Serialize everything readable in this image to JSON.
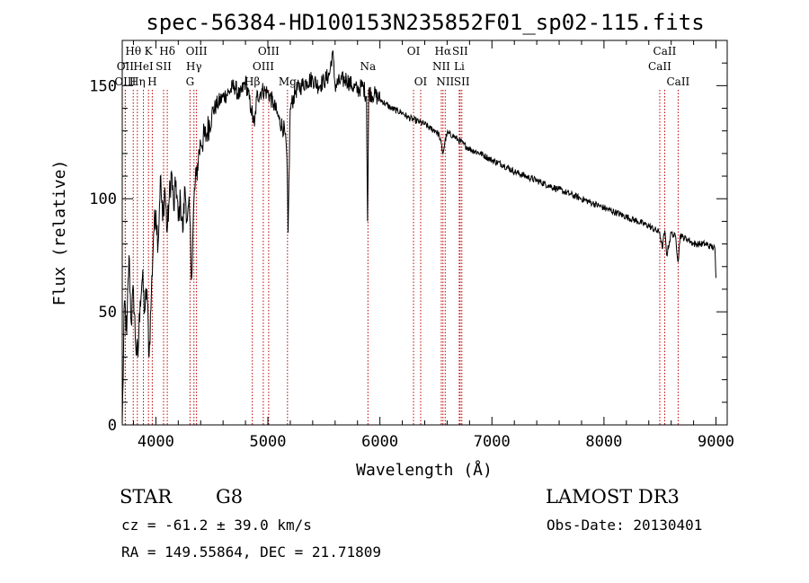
{
  "chart_data": {
    "type": "line",
    "title": "spec-56384-HD100153N235852F01_sp02-115.fits",
    "xlabel": "Wavelength (Å)",
    "ylabel": "Flux (relative)",
    "xlim": [
      3700,
      9100
    ],
    "ylim": [
      0,
      170
    ],
    "xticks": [
      4000,
      5000,
      6000,
      7000,
      8000,
      9000
    ],
    "yticks": [
      0,
      50,
      100,
      150
    ],
    "series": [
      {
        "name": "spectrum",
        "x": [
          3700,
          3720,
          3740,
          3760,
          3780,
          3800,
          3820,
          3840,
          3860,
          3880,
          3900,
          3920,
          3940,
          3960,
          3980,
          4000,
          4020,
          4040,
          4060,
          4080,
          4100,
          4120,
          4140,
          4160,
          4180,
          4200,
          4220,
          4240,
          4260,
          4280,
          4300,
          4320,
          4340,
          4360,
          4380,
          4400,
          4450,
          4500,
          4550,
          4600,
          4650,
          4700,
          4750,
          4800,
          4850,
          4880,
          4900,
          4950,
          5000,
          5050,
          5100,
          5150,
          5170,
          5180,
          5200,
          5250,
          5300,
          5350,
          5400,
          5450,
          5500,
          5550,
          5577,
          5600,
          5650,
          5700,
          5750,
          5800,
          5850,
          5880,
          5890,
          5900,
          5950,
          6000,
          6050,
          6100,
          6150,
          6200,
          6250,
          6300,
          6350,
          6400,
          6450,
          6500,
          6530,
          6563,
          6580,
          6600,
          6650,
          6700,
          6750,
          6800,
          6900,
          7000,
          7100,
          7200,
          7300,
          7400,
          7500,
          7600,
          7700,
          7800,
          7900,
          8000,
          8100,
          8200,
          8300,
          8400,
          8498,
          8520,
          8542,
          8560,
          8600,
          8640,
          8662,
          8680,
          8700,
          8750,
          8800,
          8850,
          8900,
          8950,
          8990,
          9000
        ],
        "values": [
          0,
          55,
          40,
          75,
          45,
          60,
          35,
          30,
          55,
          65,
          50,
          60,
          30,
          58,
          85,
          95,
          80,
          110,
          90,
          105,
          85,
          100,
          112,
          95,
          108,
          90,
          100,
          85,
          105,
          90,
          95,
          65,
          100,
          110,
          118,
          125,
          128,
          138,
          142,
          145,
          147,
          150,
          145,
          152,
          140,
          132,
          145,
          148,
          147,
          142,
          135,
          130,
          118,
          85,
          140,
          148,
          150,
          152,
          153,
          150,
          152,
          155,
          165,
          150,
          152,
          153,
          150,
          148,
          150,
          145,
          90,
          147,
          146,
          144,
          142,
          140,
          139,
          138,
          136,
          135,
          134,
          133,
          131,
          130,
          128,
          120,
          125,
          129,
          128,
          126,
          124,
          122,
          120,
          117,
          115,
          112,
          110,
          108,
          106,
          104,
          102,
          100,
          98,
          96,
          94,
          92,
          90,
          88,
          85,
          78,
          86,
          75,
          85,
          83,
          72,
          84,
          83,
          82,
          80,
          80,
          80,
          79,
          78,
          65
        ]
      }
    ],
    "lines": [
      {
        "label": "Hθ",
        "wavelength": 3798,
        "row": 1
      },
      {
        "label": "OII",
        "wavelength": 3727,
        "row": 2
      },
      {
        "label": "OIII",
        "wavelength": 3727,
        "row": 3
      },
      {
        "label": "K",
        "wavelength": 3934,
        "row": 1
      },
      {
        "label": "HeI",
        "wavelength": 3889,
        "row": 2
      },
      {
        "label": "Hη",
        "wavelength": 3835,
        "row": 3
      },
      {
        "label": "Hδ",
        "wavelength": 4102,
        "row": 1
      },
      {
        "label": "SII",
        "wavelength": 4069,
        "row": 2
      },
      {
        "label": "H",
        "wavelength": 3968,
        "row": 3
      },
      {
        "label": "OIII",
        "wavelength": 4363,
        "row": 1
      },
      {
        "label": "Hγ",
        "wavelength": 4340,
        "row": 2
      },
      {
        "label": "G",
        "wavelength": 4305,
        "row": 3
      },
      {
        "label": "OIII",
        "wavelength": 5007,
        "row": 1
      },
      {
        "label": "OIII",
        "wavelength": 4959,
        "row": 2
      },
      {
        "label": "Hβ",
        "wavelength": 4861,
        "row": 3
      },
      {
        "label": "Mg",
        "wavelength": 5175,
        "row": 3
      },
      {
        "label": "Na",
        "wavelength": 5893,
        "row": 2
      },
      {
        "label": "OI",
        "wavelength": 6300,
        "row": 1
      },
      {
        "label": "OI",
        "wavelength": 6364,
        "row": 3
      },
      {
        "label": "Hα",
        "wavelength": 6563,
        "row": 1
      },
      {
        "label": "SII",
        "wavelength": 6716,
        "row": 1
      },
      {
        "label": "NII",
        "wavelength": 6548,
        "row": 2
      },
      {
        "label": "Li",
        "wavelength": 6708,
        "row": 2
      },
      {
        "label": "NII",
        "wavelength": 6583,
        "row": 3
      },
      {
        "label": "SII",
        "wavelength": 6731,
        "row": 3
      },
      {
        "label": "CaII",
        "wavelength": 8542,
        "row": 1
      },
      {
        "label": "CaII",
        "wavelength": 8498,
        "row": 2
      },
      {
        "label": "CaII",
        "wavelength": 8662,
        "row": 3
      }
    ]
  },
  "info": {
    "object_class": "STAR",
    "subclass": "G8",
    "survey": "LAMOST DR3",
    "cz": "cz = -61.2 ± 39.0 km/s",
    "obs_date": "Obs-Date: 20130401",
    "coords": "RA = 149.55864, DEC =  21.71809"
  }
}
